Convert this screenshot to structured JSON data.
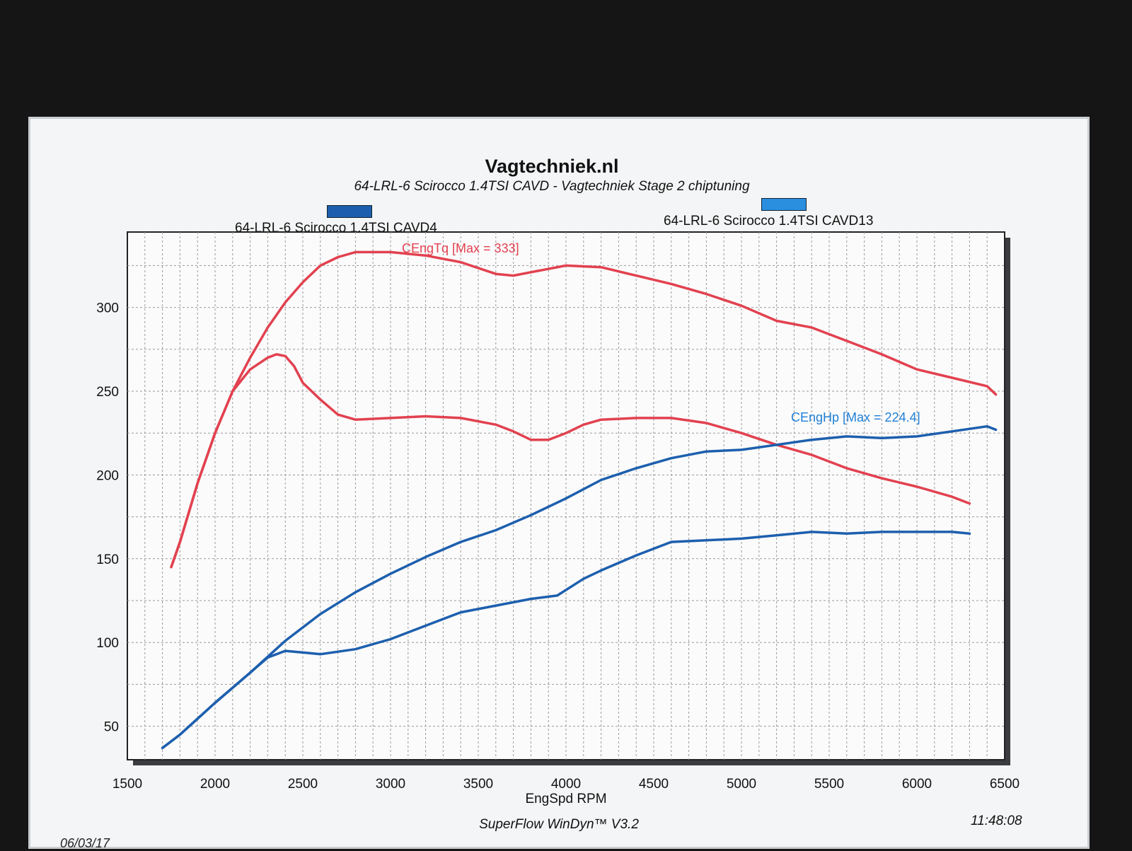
{
  "header": {
    "title": "Vagtechniek.nl",
    "subtitle": "64-LRL-6 Scirocco 1.4TSI CAVD - Vagtechniek Stage 2 chiptuning"
  },
  "legend": [
    {
      "label": "64-LRL-6 Scirocco 1.4TSI CAVD4",
      "color": "#1d5fae"
    },
    {
      "label": "64-LRL-6 Scirocco 1.4TSI CAVD13",
      "color": "#2b8fe0"
    }
  ],
  "footer": {
    "app": "SuperFlow WinDyn™ V3.2",
    "time": "11:48:08",
    "date": "06/03/17"
  },
  "colors": {
    "torque": "#e2414f",
    "power": "#1d5fae",
    "power_annotation": "#1f7fd6"
  },
  "chart_data": {
    "type": "line",
    "xlabel": "EngSpd RPM",
    "ylabel": "",
    "xlim": [
      1500,
      6500
    ],
    "ylim": [
      30,
      345
    ],
    "xticks": [
      "1500",
      "2000",
      "2500",
      "3000",
      "3500",
      "4000",
      "4500",
      "5000",
      "5500",
      "6000",
      "6500"
    ],
    "yticks": [
      "50",
      "100",
      "150",
      "200",
      "250",
      "300"
    ],
    "grid": true,
    "annotations": [
      {
        "text": "CEngTq [Max = 333]",
        "color": "#e2414f"
      },
      {
        "text": "CEngHp [Max = 224.4]",
        "color": "#1f7fd6"
      }
    ],
    "series": [
      {
        "color": "#e2414f",
        "x": [
          1750,
          1800,
          1900,
          2000,
          2100,
          2200,
          2300,
          2400,
          2500,
          2600,
          2700,
          2800,
          2900,
          3000,
          3200,
          3400,
          3600,
          3700,
          3800,
          4000,
          4200,
          4400,
          4600,
          4800,
          5000,
          5200,
          5400,
          5600,
          5800,
          6000,
          6200,
          6400,
          6450
        ],
        "y": [
          145,
          160,
          195,
          225,
          250,
          270,
          288,
          303,
          315,
          325,
          330,
          333,
          333,
          333,
          331,
          327,
          320,
          319,
          321,
          325,
          324,
          319,
          314,
          308,
          301,
          292,
          288,
          280,
          272,
          263,
          258,
          253,
          248
        ]
      },
      {
        "color": "#e2414f",
        "x": [
          1750,
          1800,
          1900,
          2000,
          2100,
          2200,
          2300,
          2350,
          2400,
          2450,
          2500,
          2600,
          2700,
          2800,
          3000,
          3200,
          3400,
          3600,
          3700,
          3800,
          3900,
          4000,
          4100,
          4200,
          4400,
          4600,
          4800,
          5000,
          5200,
          5400,
          5600,
          5800,
          6000,
          6200,
          6300
        ],
        "y": [
          145,
          160,
          195,
          225,
          250,
          263,
          270,
          272,
          271,
          265,
          255,
          245,
          236,
          233,
          234,
          235,
          234,
          230,
          226,
          221,
          221,
          225,
          230,
          233,
          234,
          234,
          231,
          225,
          218,
          212,
          204,
          198,
          193,
          187,
          183
        ]
      },
      {
        "color": "#1d5fae",
        "x": [
          1700,
          1800,
          2000,
          2200,
          2400,
          2600,
          2800,
          3000,
          3200,
          3400,
          3600,
          3800,
          4000,
          4200,
          4400,
          4600,
          4800,
          5000,
          5200,
          5400,
          5600,
          5800,
          6000,
          6200,
          6400,
          6450
        ],
        "y": [
          37,
          45,
          64,
          82,
          101,
          117,
          130,
          141,
          151,
          160,
          167,
          176,
          186,
          197,
          204,
          210,
          214,
          215,
          218,
          221,
          223,
          222,
          223,
          226,
          229,
          227
        ]
      },
      {
        "color": "#1d5fae",
        "x": [
          1700,
          1800,
          2000,
          2200,
          2300,
          2400,
          2500,
          2600,
          2800,
          3000,
          3200,
          3400,
          3600,
          3800,
          3950,
          4100,
          4200,
          4400,
          4600,
          4800,
          5000,
          5200,
          5400,
          5600,
          5800,
          6000,
          6200,
          6300
        ],
        "y": [
          37,
          45,
          64,
          82,
          91,
          95,
          94,
          93,
          96,
          102,
          110,
          118,
          122,
          126,
          128,
          138,
          143,
          152,
          160,
          161,
          162,
          164,
          166,
          165,
          166,
          166,
          166,
          165
        ]
      }
    ]
  }
}
